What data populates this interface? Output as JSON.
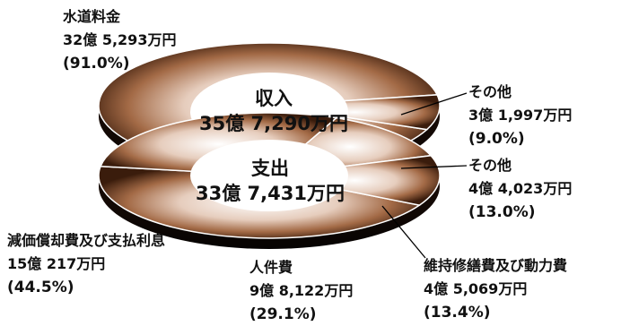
{
  "chart_data": [
    {
      "type": "pie",
      "title": "収入",
      "total": "35億 7,290万円",
      "slices": [
        {
          "label": "水道料金",
          "amount": "32億 5,293万円",
          "percent_text": "(91.0%)",
          "value": 91.0
        },
        {
          "label": "その他",
          "amount": "3億 1,997万円",
          "percent_text": "(9.0%)",
          "value": 9.0
        }
      ]
    },
    {
      "type": "pie",
      "title": "支出",
      "total": "33億 7,431万円",
      "slices": [
        {
          "label": "減価償却費及び支払利息",
          "amount": "15億 217万円",
          "percent_text": "(44.5%)",
          "value": 44.5
        },
        {
          "label": "人件費",
          "amount": "9億 8,122万円",
          "percent_text": "(29.1%)",
          "value": 29.1
        },
        {
          "label": "維持修繕費及び動力費",
          "amount": "4億 5,069万円",
          "percent_text": "(13.4%)",
          "value": 13.4
        },
        {
          "label": "その他",
          "amount": "4億 4,023万円",
          "percent_text": "(13.0%)",
          "value": 13.0
        }
      ]
    }
  ]
}
